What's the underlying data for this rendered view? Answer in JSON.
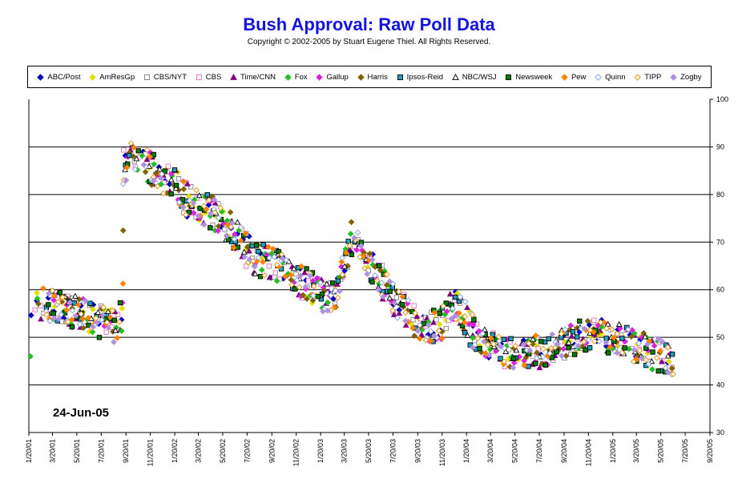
{
  "header": {
    "title": "Bush Approval:  Raw Poll Data",
    "subtitle": "Copyright © 2002-2005 by Stuart Eugene Thiel.  All Rights Reserved."
  },
  "date_stamp": "24-Jun-05",
  "chart_data": {
    "type": "scatter",
    "title": "Bush Approval:  Raw Poll Data",
    "xlabel": "",
    "ylabel": "",
    "y_axis_side": "right",
    "ylim": [
      30,
      100
    ],
    "yticks": [
      30,
      40,
      50,
      60,
      70,
      80,
      90,
      100
    ],
    "xlim": [
      "2001-01-20",
      "2005-09-20"
    ],
    "xticks": [
      "1/20/01",
      "3/20/01",
      "5/20/01",
      "7/20/01",
      "9/20/01",
      "11/20/01",
      "1/20/02",
      "3/20/02",
      "5/20/02",
      "7/20/02",
      "9/20/02",
      "11/20/02",
      "1/20/03",
      "3/20/03",
      "5/20/03",
      "7/20/03",
      "9/20/03",
      "11/20/03",
      "1/20/04",
      "3/20/04",
      "5/20/04",
      "7/20/04",
      "9/20/04",
      "11/20/04",
      "1/20/05",
      "3/20/05",
      "5/20/05",
      "7/20/05",
      "9/20/05"
    ],
    "grid": "horizontal",
    "legend_position": "top",
    "series": [
      {
        "name": "ABC/Post",
        "color": "#0000c0",
        "marker": "diamond",
        "filled": true
      },
      {
        "name": "AmResGp",
        "color": "#e0e000",
        "marker": "diamond",
        "filled": true
      },
      {
        "name": "CBS/NYT",
        "color": "#808080",
        "marker": "square",
        "filled": false
      },
      {
        "name": "CBS",
        "color": "#e070c0",
        "marker": "square",
        "filled": false
      },
      {
        "name": "Time/CNN",
        "color": "#800080",
        "marker": "triangle",
        "filled": true
      },
      {
        "name": "Fox",
        "color": "#20c020",
        "marker": "diamond",
        "filled": true
      },
      {
        "name": "Gallup",
        "color": "#e020e0",
        "marker": "diamond",
        "filled": true
      },
      {
        "name": "Harris",
        "color": "#806000",
        "marker": "diamond",
        "filled": true
      },
      {
        "name": "Ipsos-Reid",
        "color": "#20a0c0",
        "marker": "square",
        "filled": true
      },
      {
        "name": "NBC/WSJ",
        "color": "#e8e800",
        "marker": "triangle",
        "filled": false
      },
      {
        "name": "Newsweek",
        "color": "#008000",
        "marker": "square",
        "filled": true
      },
      {
        "name": "Pew",
        "color": "#ff8000",
        "marker": "diamond",
        "filled": true
      },
      {
        "name": "Quinn",
        "color": "#80a0e0",
        "marker": "diamond",
        "filled": false
      },
      {
        "name": "TIPP",
        "color": "#e09000",
        "marker": "diamond",
        "filled": false
      },
      {
        "name": "Zogby",
        "color": "#b090e0",
        "marker": "diamond",
        "filled": true
      }
    ],
    "trend": [
      [
        "2001-01-20",
        46
      ],
      [
        "2001-01-25",
        56
      ],
      [
        "2001-03-01",
        57
      ],
      [
        "2001-04-15",
        56
      ],
      [
        "2001-06-01",
        55
      ],
      [
        "2001-07-20",
        53
      ],
      [
        "2001-09-01",
        52
      ],
      [
        "2001-09-10",
        55
      ],
      [
        "2001-09-15",
        86
      ],
      [
        "2001-10-10",
        88
      ],
      [
        "2001-11-10",
        86
      ],
      [
        "2001-12-20",
        84
      ],
      [
        "2002-01-20",
        82
      ],
      [
        "2002-03-01",
        78
      ],
      [
        "2002-05-01",
        76
      ],
      [
        "2002-06-15",
        72
      ],
      [
        "2002-08-01",
        67
      ],
      [
        "2002-10-01",
        65
      ],
      [
        "2002-12-01",
        62
      ],
      [
        "2003-01-20",
        59
      ],
      [
        "2003-02-25",
        58
      ],
      [
        "2003-03-20",
        66
      ],
      [
        "2003-04-10",
        71
      ],
      [
        "2003-05-10",
        66
      ],
      [
        "2003-06-20",
        62
      ],
      [
        "2003-08-01",
        57
      ],
      [
        "2003-09-20",
        53
      ],
      [
        "2003-11-10",
        52
      ],
      [
        "2003-12-15",
        57
      ],
      [
        "2004-01-10",
        55
      ],
      [
        "2004-02-10",
        50
      ],
      [
        "2004-03-20",
        49
      ],
      [
        "2004-05-20",
        46
      ],
      [
        "2004-07-20",
        47
      ],
      [
        "2004-09-20",
        49
      ],
      [
        "2004-11-20",
        51
      ],
      [
        "2005-01-20",
        50
      ],
      [
        "2005-03-20",
        48
      ],
      [
        "2005-05-20",
        46
      ],
      [
        "2005-06-20",
        44
      ]
    ]
  }
}
